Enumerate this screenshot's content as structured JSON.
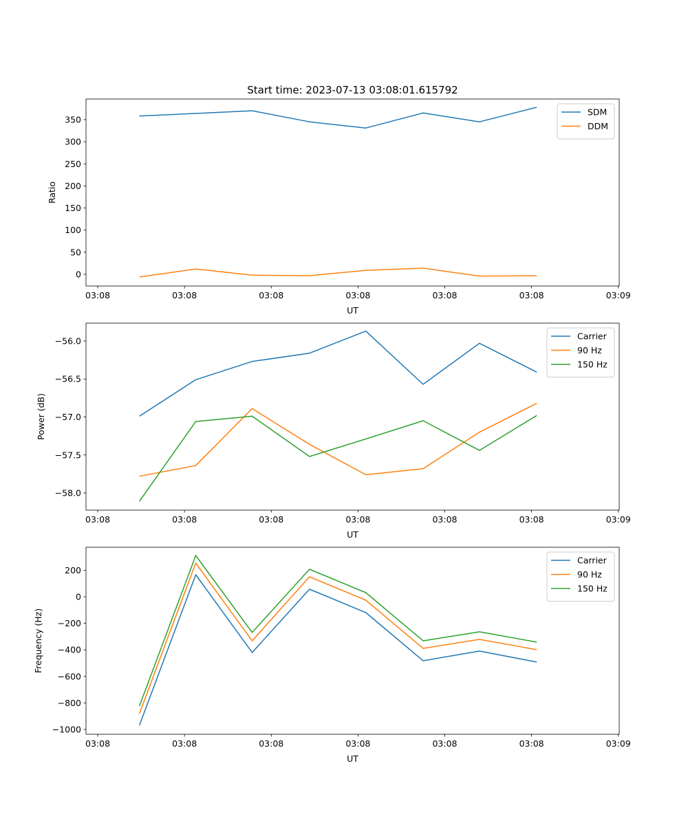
{
  "chart_data": [
    {
      "type": "line",
      "title": "Start time: 2023-07-13 03:08:01.615792",
      "xlabel": "UT",
      "ylabel": "Ratio",
      "x_seconds_after_0308": [
        4.8,
        11.3,
        17.8,
        24.4,
        30.9,
        37.5,
        44.0,
        50.6
      ],
      "xlim": [
        -1.35,
        60.1
      ],
      "xticks": [
        0,
        10,
        20,
        30,
        40,
        50,
        60
      ],
      "xtick_labels": [
        "03:08",
        "03:08",
        "03:08",
        "03:08",
        "03:08",
        "03:08",
        "03:09"
      ],
      "ylim": [
        -26.4,
        396.6
      ],
      "yticks": [
        0,
        50,
        100,
        150,
        200,
        250,
        300,
        350
      ],
      "ytick_labels": [
        "0",
        "50",
        "100",
        "150",
        "200",
        "250",
        "300",
        "350"
      ],
      "legend": "top-right",
      "series": [
        {
          "name": "SDM",
          "color": "#1f77b4",
          "values": [
            358,
            364,
            370,
            345,
            331,
            365,
            345,
            378
          ]
        },
        {
          "name": "DDM",
          "color": "#ff7f0e",
          "values": [
            -6,
            12,
            -2,
            -3,
            9,
            14,
            -4,
            -3
          ]
        }
      ]
    },
    {
      "type": "line",
      "title": "",
      "xlabel": "UT",
      "ylabel": "Power (dB)",
      "x_seconds_after_0308": [
        4.8,
        11.3,
        17.8,
        24.4,
        30.9,
        37.5,
        44.0,
        50.6
      ],
      "xlim": [
        -1.35,
        60.1
      ],
      "xticks": [
        0,
        10,
        20,
        30,
        40,
        50,
        60
      ],
      "xtick_labels": [
        "03:08",
        "03:08",
        "03:08",
        "03:08",
        "03:08",
        "03:08",
        "03:09"
      ],
      "ylim": [
        -58.226,
        -55.765
      ],
      "yticks": [
        -58.0,
        -57.5,
        -57.0,
        -56.5,
        -56.0
      ],
      "ytick_labels": [
        "−58.0",
        "−57.5",
        "−57.0",
        "−56.5",
        "−56.0"
      ],
      "legend": "top-right",
      "series": [
        {
          "name": "Carrier",
          "color": "#1f77b4",
          "values": [
            -56.99,
            -56.51,
            -56.27,
            -56.16,
            -55.87,
            -56.57,
            -56.03,
            -56.41
          ]
        },
        {
          "name": "90 Hz",
          "color": "#ff7f0e",
          "values": [
            -57.78,
            -57.64,
            -56.89,
            -57.36,
            -57.76,
            -57.68,
            -57.2,
            -56.82
          ]
        },
        {
          "name": "150 Hz",
          "color": "#2ca02c",
          "values": [
            -58.11,
            -57.06,
            -56.99,
            -57.52,
            -57.29,
            -57.05,
            -57.44,
            -56.98
          ]
        }
      ]
    },
    {
      "type": "line",
      "title": "",
      "xlabel": "UT",
      "ylabel": "Frequency (Hz)",
      "x_seconds_after_0308": [
        4.8,
        11.3,
        17.8,
        24.4,
        30.9,
        37.5,
        44.0,
        50.6
      ],
      "xlim": [
        -1.35,
        60.1
      ],
      "xticks": [
        0,
        10,
        20,
        30,
        40,
        50,
        60
      ],
      "xtick_labels": [
        "03:08",
        "03:08",
        "03:08",
        "03:08",
        "03:08",
        "03:08",
        "03:09"
      ],
      "ylim": [
        -1036,
        373
      ],
      "yticks": [
        -1000,
        -800,
        -600,
        -400,
        -200,
        0,
        200
      ],
      "ytick_labels": [
        "−1000",
        "−800",
        "−600",
        "−400",
        "−200",
        "0",
        "200"
      ],
      "legend": "top-right",
      "series": [
        {
          "name": "Carrier",
          "color": "#1f77b4",
          "values": [
            -969,
            166,
            -420,
            57,
            -119,
            -482,
            -409,
            -492
          ]
        },
        {
          "name": "90 Hz",
          "color": "#ff7f0e",
          "values": [
            -881,
            254,
            -332,
            150,
            -26,
            -389,
            -321,
            -399
          ]
        },
        {
          "name": "150 Hz",
          "color": "#2ca02c",
          "values": [
            -824,
            311,
            -269,
            207,
            31,
            -332,
            -264,
            -342
          ]
        }
      ]
    }
  ]
}
